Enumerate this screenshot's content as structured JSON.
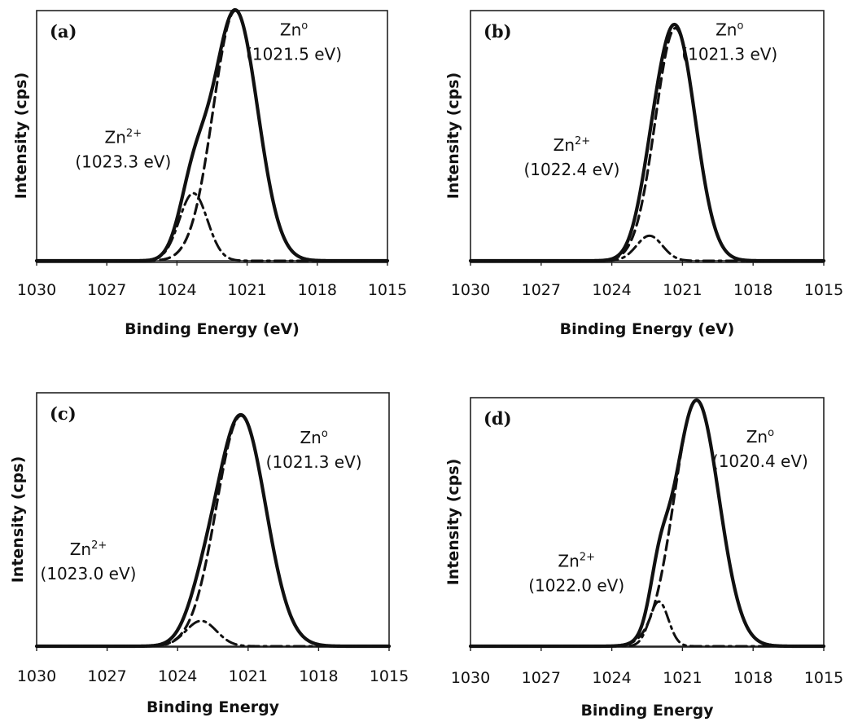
{
  "chart_data": [
    {
      "type": "line",
      "panel_label": "(a)",
      "xlabel": "Binding Energy (eV)",
      "ylabel": "Intensity (cps)",
      "xlim": [
        1030,
        1015
      ],
      "x_reversed": true,
      "x_ticks": [
        1030,
        1027,
        1024,
        1021,
        1018,
        1015
      ],
      "grid": false,
      "annotations": [
        {
          "base": "Zn",
          "sup": "o",
          "energy": "(1021.5 eV)",
          "anchor_x": 1019.0,
          "anchor_y": 0.9
        },
        {
          "base": "Zn",
          "sup": "2+",
          "energy": "(1023.3 eV)",
          "anchor_x": 1026.3,
          "anchor_y": 0.47
        }
      ],
      "series": [
        {
          "style": "solid",
          "components": [
            {
              "center": 1021.5,
              "height": 1.0,
              "sigma": 0.95
            },
            {
              "center": 1023.3,
              "height": 0.27,
              "sigma": 0.6
            }
          ]
        },
        {
          "style": "dashed",
          "components": [
            {
              "center": 1021.5,
              "height": 1.0,
              "sigma": 0.95
            }
          ]
        },
        {
          "style": "dashdot",
          "components": [
            {
              "center": 1023.3,
              "height": 0.27,
              "sigma": 0.6
            }
          ]
        }
      ]
    },
    {
      "type": "line",
      "panel_label": "(b)",
      "xlabel": "Binding Energy (eV)",
      "ylabel": "Intensity (cps)",
      "xlim": [
        1030,
        1015
      ],
      "x_reversed": true,
      "x_ticks": [
        1030,
        1027,
        1024,
        1021,
        1018,
        1015
      ],
      "grid": false,
      "annotations": [
        {
          "base": "Zn",
          "sup": "o",
          "energy": "(1021.3 eV)",
          "anchor_x": 1019.0,
          "anchor_y": 0.9
        },
        {
          "base": "Zn",
          "sup": "2+",
          "energy": "(1022.4 eV)",
          "anchor_x": 1025.7,
          "anchor_y": 0.44
        }
      ],
      "series": [
        {
          "style": "solid",
          "components": [
            {
              "center": 1021.3,
              "height": 0.93,
              "sigma": 0.85
            },
            {
              "center": 1022.4,
              "height": 0.1,
              "sigma": 0.55
            }
          ]
        },
        {
          "style": "dashed",
          "components": [
            {
              "center": 1021.3,
              "height": 0.93,
              "sigma": 0.85
            }
          ]
        },
        {
          "style": "dashdot",
          "components": [
            {
              "center": 1022.4,
              "height": 0.1,
              "sigma": 0.55
            }
          ]
        }
      ]
    },
    {
      "type": "line",
      "panel_label": "(c)",
      "xlabel": "Binding Energy",
      "ylabel": "Intensity (cps)",
      "xlim": [
        1030,
        1015
      ],
      "x_reversed": true,
      "x_ticks": [
        1030,
        1027,
        1024,
        1021,
        1018,
        1015
      ],
      "grid": false,
      "annotations": [
        {
          "base": "Zn",
          "sup": "o",
          "energy": "(1021.3 eV)",
          "anchor_x": 1018.2,
          "anchor_y": 0.8
        },
        {
          "base": "Zn",
          "sup": "2+",
          "energy": "(1023.0 eV)",
          "anchor_x": 1027.8,
          "anchor_y": 0.36
        }
      ],
      "series": [
        {
          "style": "solid",
          "components": [
            {
              "center": 1021.3,
              "height": 0.91,
              "sigma": 1.05
            },
            {
              "center": 1023.0,
              "height": 0.1,
              "sigma": 0.65
            }
          ]
        },
        {
          "style": "dashed",
          "components": [
            {
              "center": 1021.3,
              "height": 0.91,
              "sigma": 1.05
            }
          ]
        },
        {
          "style": "dashdot",
          "components": [
            {
              "center": 1023.0,
              "height": 0.1,
              "sigma": 0.65
            }
          ]
        }
      ]
    },
    {
      "type": "line",
      "panel_label": "(d)",
      "xlabel": "Binding Energy",
      "ylabel": "Intensity (cps)",
      "xlim": [
        1030,
        1015
      ],
      "x_reversed": true,
      "x_ticks": [
        1030,
        1027,
        1024,
        1021,
        1018,
        1015
      ],
      "grid": false,
      "annotations": [
        {
          "base": "Zn",
          "sup": "o",
          "energy": "(1020.4 eV)",
          "anchor_x": 1017.7,
          "anchor_y": 0.82
        },
        {
          "base": "Zn",
          "sup": "2+",
          "energy": "(1022.0 eV)",
          "anchor_x": 1025.5,
          "anchor_y": 0.32
        }
      ],
      "series": [
        {
          "style": "solid",
          "components": [
            {
              "center": 1020.4,
              "height": 0.99,
              "sigma": 0.95
            },
            {
              "center": 1022.0,
              "height": 0.18,
              "sigma": 0.4
            }
          ]
        },
        {
          "style": "dashed",
          "components": [
            {
              "center": 1020.4,
              "height": 0.99,
              "sigma": 0.95
            }
          ]
        },
        {
          "style": "dashdot",
          "components": [
            {
              "center": 1022.0,
              "height": 0.18,
              "sigma": 0.4
            }
          ]
        }
      ]
    }
  ]
}
